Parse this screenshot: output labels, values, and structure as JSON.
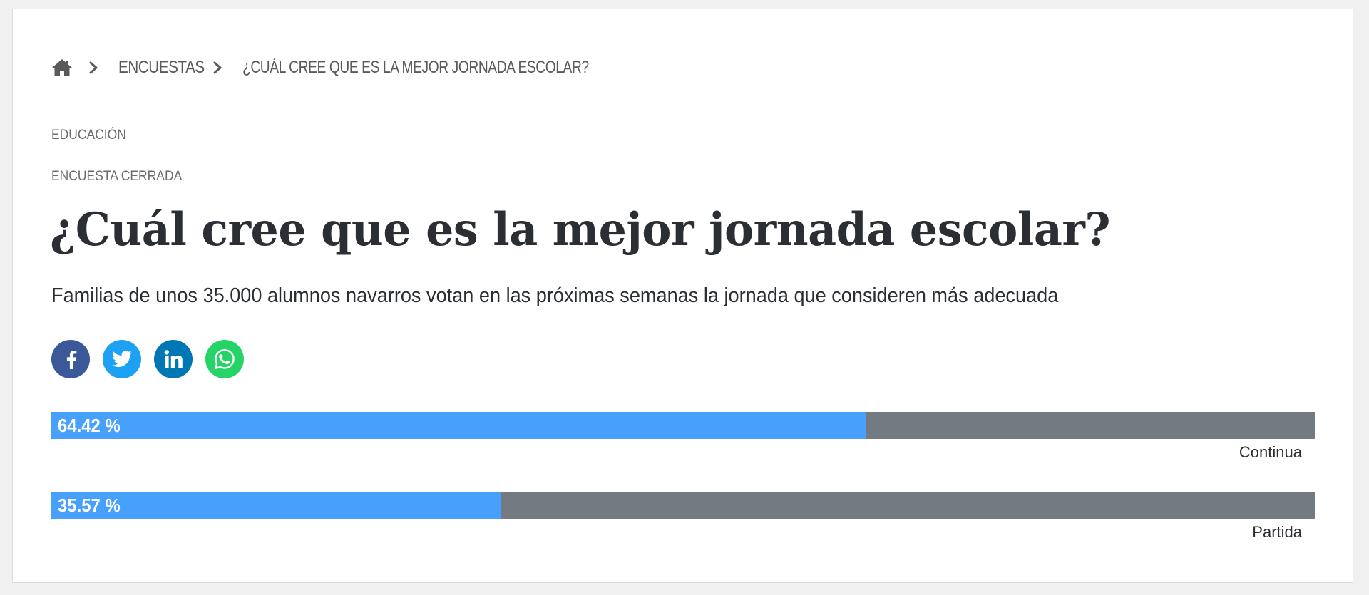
{
  "breadcrumb": {
    "home_icon": "home-icon",
    "separator_icon": "chevron-right-icon",
    "items": [
      {
        "label": "ENCUESTAS"
      },
      {
        "label": "¿CUÁL CREE QUE ES LA MEJOR JORNADA ESCOLAR?"
      }
    ]
  },
  "poll": {
    "category": "EDUCACIÓN",
    "status": "ENCUESTA CERRADA",
    "title": "¿Cuál cree que es la mejor jornada escolar?",
    "subtitle": "Familias de unos 35.000 alumnos navarros votan en las próximas semanas la jornada que consideren más adecuada"
  },
  "share": [
    {
      "icon": "facebook-icon",
      "color": "#3b5998"
    },
    {
      "icon": "twitter-icon",
      "color": "#1da1f2"
    },
    {
      "icon": "linkedin-icon",
      "color": "#0077b5"
    },
    {
      "icon": "whatsapp-icon",
      "color": "#25d366"
    }
  ],
  "results": [
    {
      "percent": 64.42,
      "percent_label": "64.42 %",
      "option": "Continua"
    },
    {
      "percent": 35.57,
      "percent_label": "35.57 %",
      "option": "Partida"
    }
  ],
  "colors": {
    "bar_fill": "#46a0fc",
    "bar_track": "#747a82",
    "text_dark": "#2b2f33",
    "text_muted": "#6b6b6b"
  }
}
